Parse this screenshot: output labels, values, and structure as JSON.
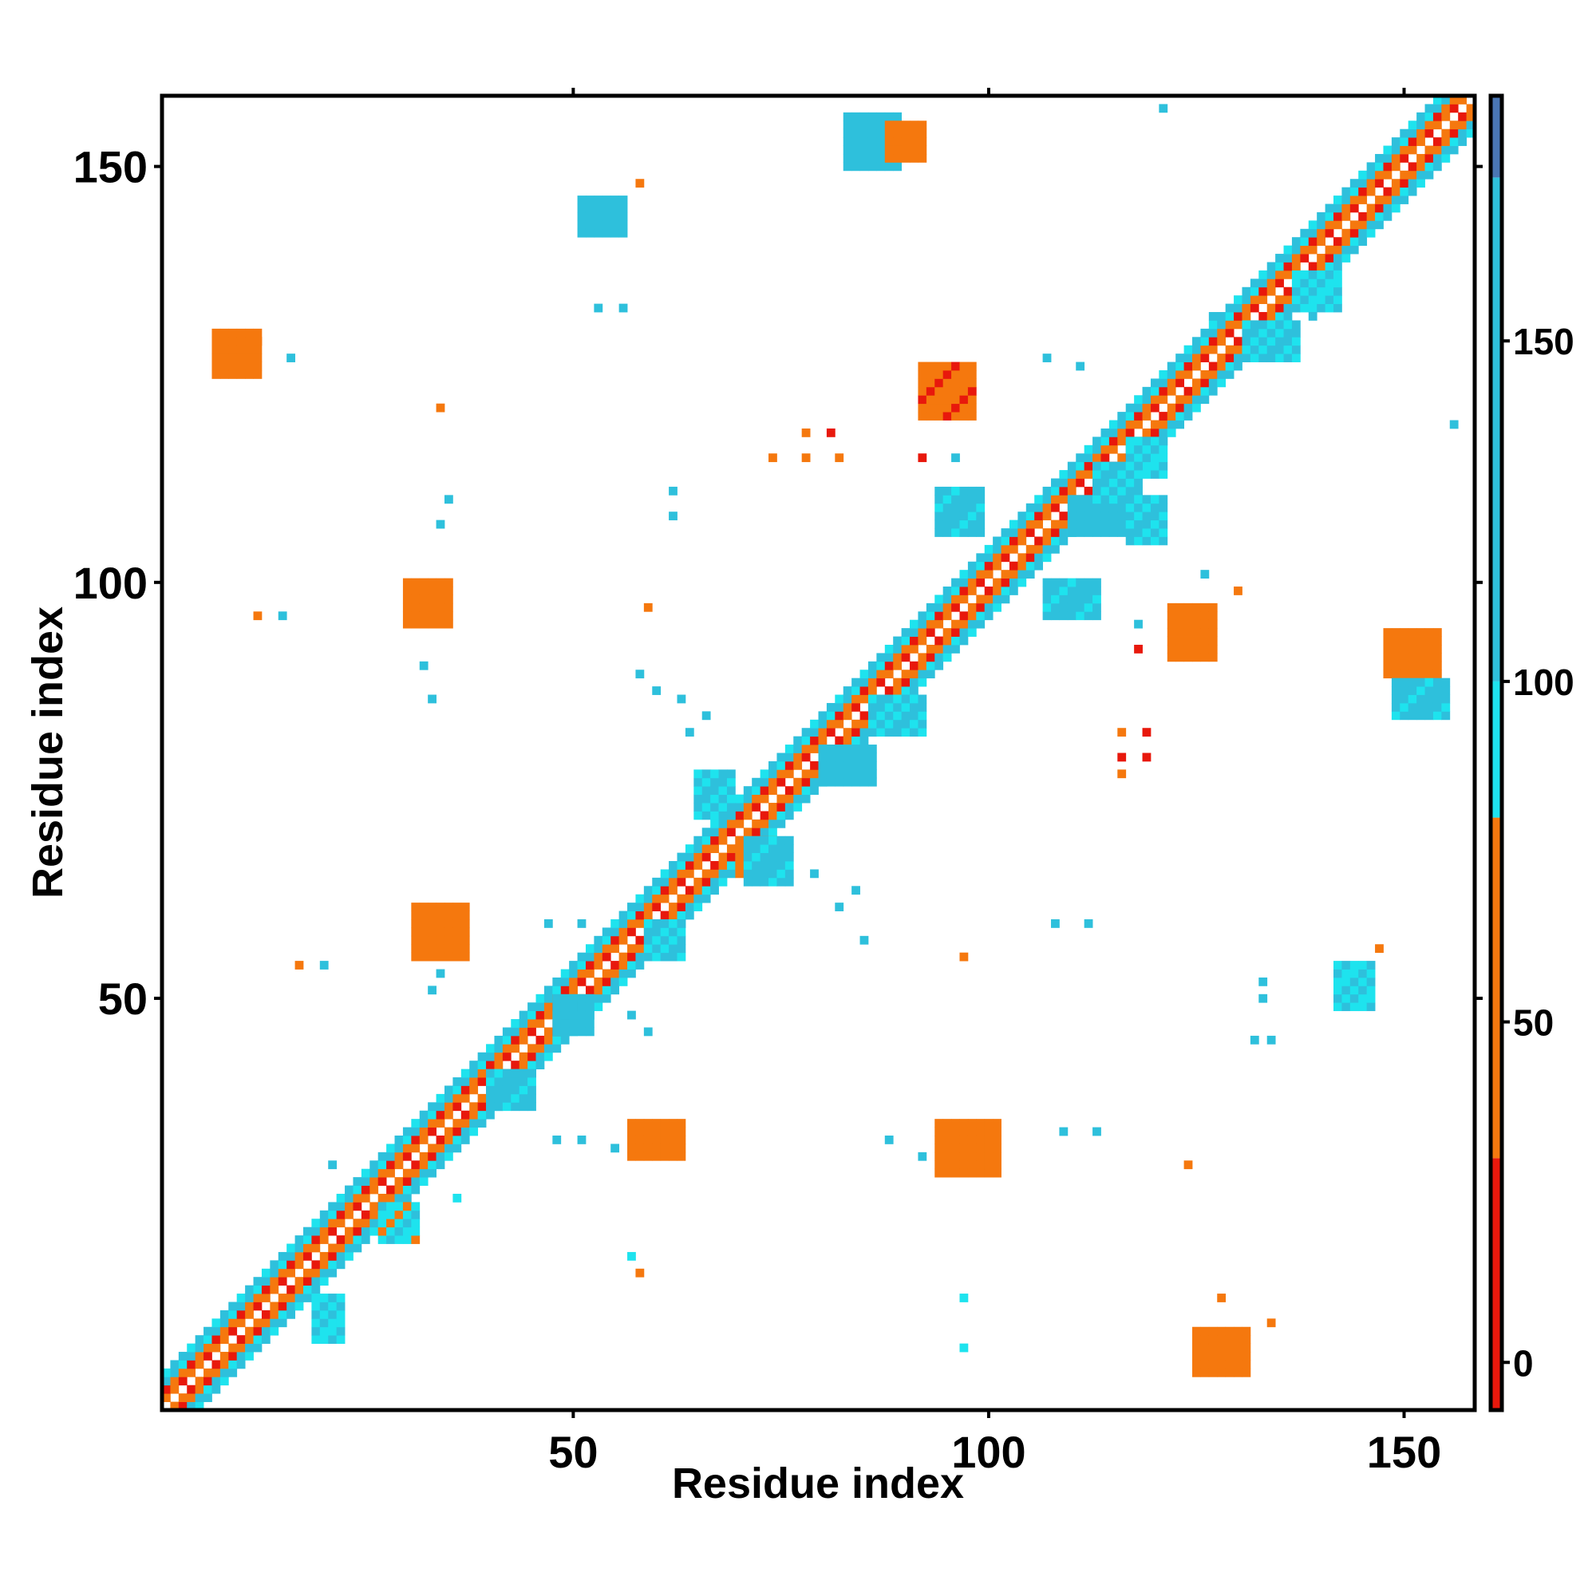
{
  "chart_data": {
    "type": "heatmap",
    "title": "",
    "xlabel": "Residue index",
    "ylabel": "Residue index",
    "xlim": [
      1,
      158
    ],
    "ylim": [
      1,
      158
    ],
    "x_ticks": [
      "50",
      "100",
      "150"
    ],
    "y_ticks": [
      "50",
      "100",
      "150"
    ],
    "colorbar": {
      "ticks": [
        "0",
        "50",
        "100",
        "150"
      ],
      "range": [
        -7,
        186
      ],
      "bands": [
        {
          "from": -7,
          "to": 30,
          "color": "#e8180c"
        },
        {
          "from": 30,
          "to": 80,
          "color": "#f5780e"
        },
        {
          "from": 80,
          "to": 100,
          "color": "#1ee3ee"
        },
        {
          "from": 100,
          "to": 174,
          "color": "#2ec0dc"
        },
        {
          "from": 174,
          "to": 186,
          "color": "#4a76b4"
        }
      ]
    },
    "diagonal_band": {
      "range": [
        1,
        158
      ],
      "value": 45
    },
    "symmetric_blocks": [
      {
        "x": [
          19,
          22
        ],
        "y": [
          9,
          14
        ],
        "value": 95
      },
      {
        "x": [
          27,
          31
        ],
        "y": [
          21,
          25
        ],
        "value": 90
      },
      {
        "x": [
          40,
          45
        ],
        "y": [
          37,
          41
        ],
        "value": 110
      },
      {
        "x": [
          48,
          52
        ],
        "y": [
          46,
          50
        ],
        "value": 115
      },
      {
        "x": [
          59,
          63
        ],
        "y": [
          55,
          59
        ],
        "value": 105
      },
      {
        "x": [
          70,
          74
        ],
        "y": [
          65,
          69
        ],
        "value": 60
      },
      {
        "x": [
          80,
          86
        ],
        "y": [
          76,
          80
        ],
        "value": 120
      },
      {
        "x": [
          86,
          92
        ],
        "y": [
          82,
          86
        ],
        "value": 100
      },
      {
        "x": [
          110,
          116
        ],
        "y": [
          106,
          110
        ],
        "value": 115
      },
      {
        "x": [
          117,
          121
        ],
        "y": [
          113,
          117
        ],
        "value": 95
      },
      {
        "x": [
          131,
          137
        ],
        "y": [
          127,
          131
        ],
        "value": 105
      },
      {
        "x": [
          137,
          142
        ],
        "y": [
          133,
          137
        ],
        "value": 95
      },
      {
        "x": [
          57,
          63
        ],
        "y": [
          31,
          35
        ],
        "value": 55
      },
      {
        "x": [
          94,
          101
        ],
        "y": [
          29,
          35
        ],
        "value": 50
      },
      {
        "x": [
          125,
          131
        ],
        "y": [
          5,
          10
        ],
        "value": 55
      },
      {
        "x": [
          122,
          127
        ],
        "y": [
          91,
          97
        ],
        "value": 45
      },
      {
        "x": [
          30,
          35
        ],
        "y": [
          95,
          100
        ],
        "value": 45
      },
      {
        "x": [
          31,
          37
        ],
        "y": [
          55,
          61
        ],
        "value": 55
      },
      {
        "x": [
          7,
          12
        ],
        "y": [
          125,
          130
        ],
        "value": 55
      },
      {
        "x": [
          92,
          98
        ],
        "y": [
          120,
          126
        ],
        "value": 40
      },
      {
        "x": [
          142,
          146
        ],
        "y": [
          49,
          54
        ],
        "value": 95
      },
      {
        "x": [
          148,
          154
        ],
        "y": [
          89,
          94
        ],
        "value": 60
      },
      {
        "x": [
          149,
          155
        ],
        "y": [
          84,
          88
        ],
        "value": 110
      },
      {
        "x": [
          83,
          89
        ],
        "y": [
          150,
          156
        ],
        "value": 115
      },
      {
        "x": [
          88,
          92
        ],
        "y": [
          151,
          155
        ],
        "value": 55
      },
      {
        "x": [
          51,
          56
        ],
        "y": [
          142,
          146
        ],
        "value": 120
      },
      {
        "x": [
          71,
          76
        ],
        "y": [
          64,
          69
        ],
        "value": 110
      },
      {
        "x": [
          65,
          69
        ],
        "y": [
          72,
          77
        ],
        "value": 105
      },
      {
        "x": [
          94,
          99
        ],
        "y": [
          106,
          111
        ],
        "value": 108
      },
      {
        "x": [
          107,
          113
        ],
        "y": [
          96,
          100
        ],
        "value": 108
      },
      {
        "x": [
          113,
          118
        ],
        "y": [
          110,
          114
        ],
        "value": 105
      },
      {
        "x": [
          117,
          121
        ],
        "y": [
          105,
          110
        ],
        "value": 100
      }
    ],
    "scatter_cells": [
      {
        "x": 78,
        "y": 118,
        "value": 40
      },
      {
        "x": 81,
        "y": 118,
        "value": 15
      },
      {
        "x": 74,
        "y": 115,
        "value": 45
      },
      {
        "x": 78,
        "y": 115,
        "value": 40
      },
      {
        "x": 82,
        "y": 115,
        "value": 40
      },
      {
        "x": 92,
        "y": 115,
        "value": 5
      },
      {
        "x": 96,
        "y": 115,
        "value": 120
      },
      {
        "x": 116,
        "y": 82,
        "value": 45
      },
      {
        "x": 119,
        "y": 82,
        "value": 10
      },
      {
        "x": 116,
        "y": 79,
        "value": 20
      },
      {
        "x": 119,
        "y": 79,
        "value": 10
      },
      {
        "x": 116,
        "y": 77,
        "value": 50
      },
      {
        "x": 59,
        "y": 97,
        "value": 50
      },
      {
        "x": 58,
        "y": 148,
        "value": 70
      },
      {
        "x": 34,
        "y": 121,
        "value": 45
      },
      {
        "x": 17,
        "y": 54,
        "value": 30
      },
      {
        "x": 20,
        "y": 54,
        "value": 100
      },
      {
        "x": 58,
        "y": 17,
        "value": 30
      },
      {
        "x": 57,
        "y": 19,
        "value": 95
      },
      {
        "x": 97,
        "y": 8,
        "value": 90
      },
      {
        "x": 97,
        "y": 14,
        "value": 95
      },
      {
        "x": 128,
        "y": 14,
        "value": 60
      },
      {
        "x": 134,
        "y": 11,
        "value": 30
      },
      {
        "x": 124,
        "y": 30,
        "value": 45
      },
      {
        "x": 97,
        "y": 55,
        "value": 60
      },
      {
        "x": 147,
        "y": 56,
        "value": 70
      },
      {
        "x": 133,
        "y": 52,
        "value": 150
      },
      {
        "x": 133,
        "y": 50,
        "value": 130
      },
      {
        "x": 108,
        "y": 59,
        "value": 120
      },
      {
        "x": 112,
        "y": 59,
        "value": 120
      },
      {
        "x": 85,
        "y": 57,
        "value": 130
      },
      {
        "x": 82,
        "y": 61,
        "value": 120
      },
      {
        "x": 79,
        "y": 65,
        "value": 120
      },
      {
        "x": 84,
        "y": 63,
        "value": 110
      },
      {
        "x": 88,
        "y": 33,
        "value": 150
      },
      {
        "x": 92,
        "y": 31,
        "value": 110
      },
      {
        "x": 109,
        "y": 34,
        "value": 120
      },
      {
        "x": 113,
        "y": 34,
        "value": 150
      },
      {
        "x": 48,
        "y": 33,
        "value": 120
      },
      {
        "x": 51,
        "y": 33,
        "value": 110
      },
      {
        "x": 55,
        "y": 32,
        "value": 110
      },
      {
        "x": 36,
        "y": 26,
        "value": 95
      },
      {
        "x": 21,
        "y": 30,
        "value": 110
      },
      {
        "x": 33,
        "y": 51,
        "value": 150
      },
      {
        "x": 34,
        "y": 53,
        "value": 100
      },
      {
        "x": 57,
        "y": 48,
        "value": 120
      },
      {
        "x": 59,
        "y": 46,
        "value": 130
      },
      {
        "x": 47,
        "y": 59,
        "value": 110
      },
      {
        "x": 51,
        "y": 59,
        "value": 130
      },
      {
        "x": 34,
        "y": 107,
        "value": 150
      },
      {
        "x": 35,
        "y": 110,
        "value": 160
      },
      {
        "x": 62,
        "y": 108,
        "value": 150
      },
      {
        "x": 62,
        "y": 111,
        "value": 130
      },
      {
        "x": 32,
        "y": 90,
        "value": 110
      },
      {
        "x": 33,
        "y": 86,
        "value": 160
      },
      {
        "x": 58,
        "y": 89,
        "value": 150
      },
      {
        "x": 60,
        "y": 87,
        "value": 150
      },
      {
        "x": 63,
        "y": 86,
        "value": 120
      },
      {
        "x": 66,
        "y": 84,
        "value": 110
      },
      {
        "x": 64,
        "y": 82,
        "value": 120
      },
      {
        "x": 12,
        "y": 129,
        "value": 30
      },
      {
        "x": 16,
        "y": 127,
        "value": 130
      },
      {
        "x": 53,
        "y": 133,
        "value": 160
      },
      {
        "x": 56,
        "y": 133,
        "value": 110
      },
      {
        "x": 126,
        "y": 101,
        "value": 110
      },
      {
        "x": 130,
        "y": 99,
        "value": 60
      },
      {
        "x": 118,
        "y": 95,
        "value": 130
      },
      {
        "x": 118,
        "y": 92,
        "value": 10
      },
      {
        "x": 107,
        "y": 127,
        "value": 120
      },
      {
        "x": 111,
        "y": 126,
        "value": 110
      },
      {
        "x": 127,
        "y": 132,
        "value": 130
      },
      {
        "x": 139,
        "y": 132,
        "value": 120
      },
      {
        "x": 156,
        "y": 119,
        "value": 120
      },
      {
        "x": 121,
        "y": 157,
        "value": 115
      },
      {
        "x": 15,
        "y": 96,
        "value": 115
      },
      {
        "x": 12,
        "y": 96,
        "value": 60
      },
      {
        "x": 132,
        "y": 45,
        "value": 150
      },
      {
        "x": 134,
        "y": 45,
        "value": 120
      }
    ]
  }
}
